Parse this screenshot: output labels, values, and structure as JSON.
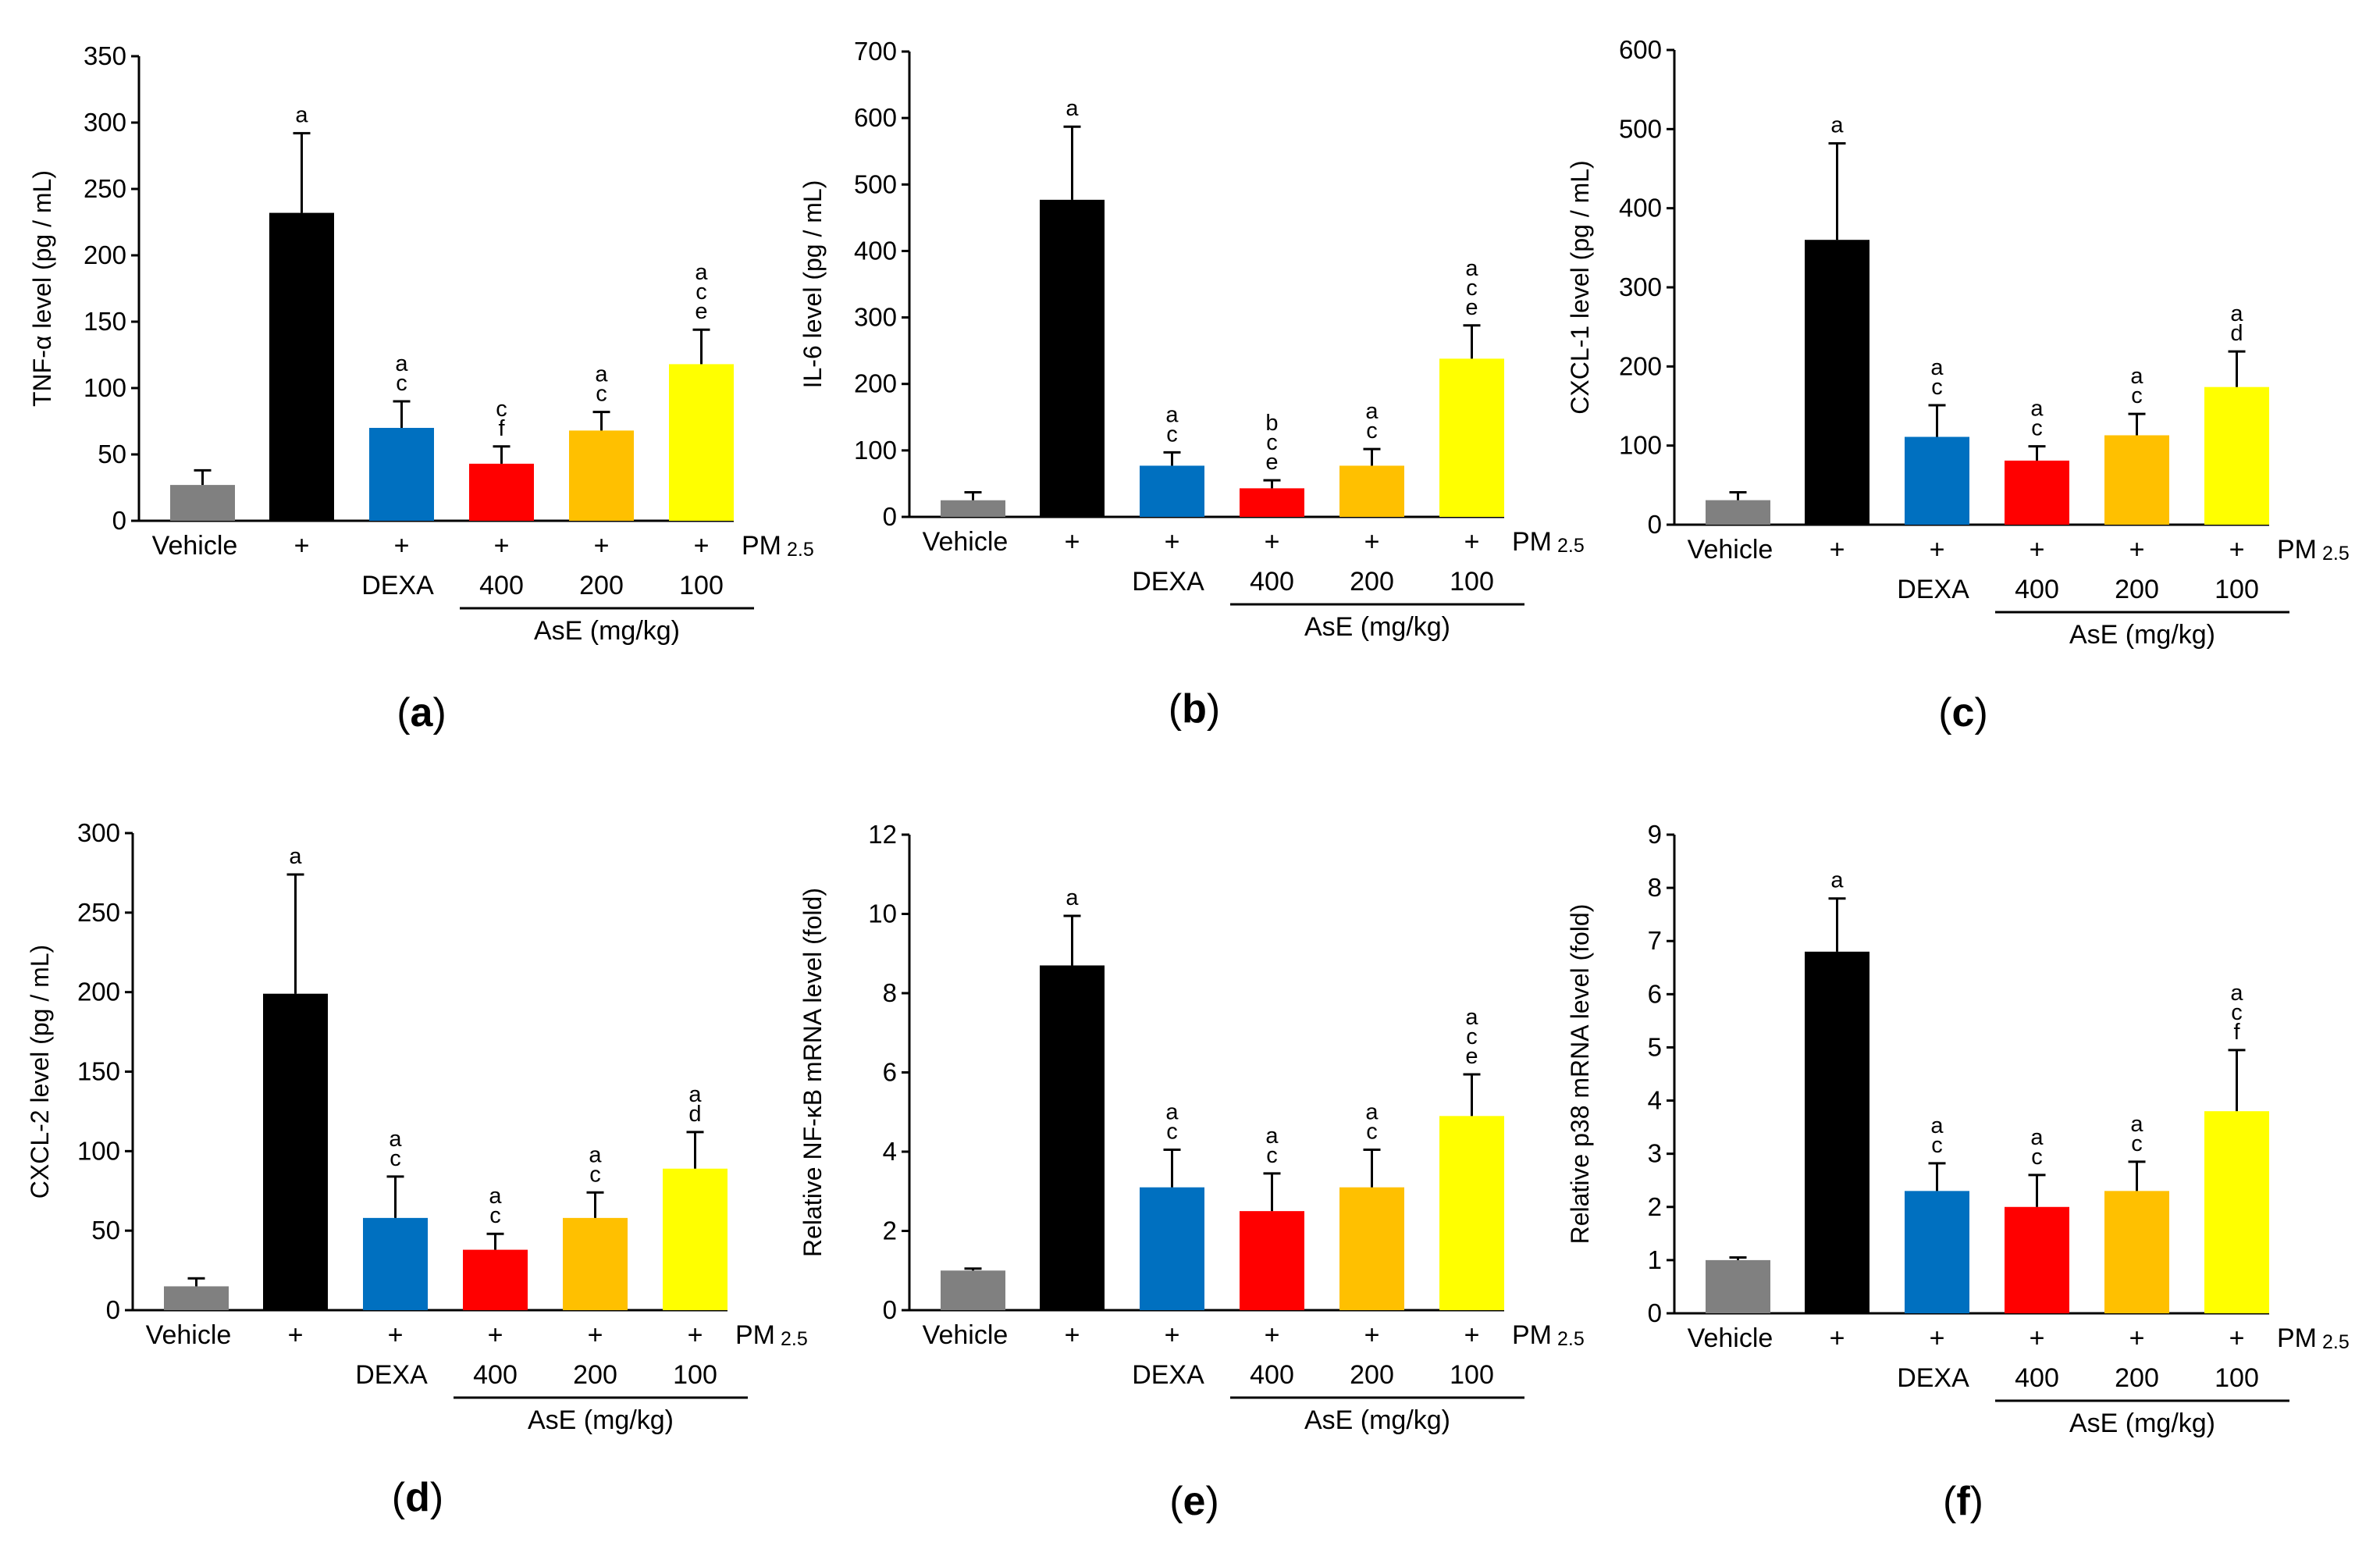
{
  "chart_data": [
    {
      "type": "bar",
      "panel_label": "a",
      "ylabel": "TNF-α level (pg / mL)",
      "ylim": [
        0,
        350
      ],
      "yticks": [
        "0",
        "50",
        "100",
        "150",
        "200",
        "250",
        "300",
        "350"
      ],
      "categories": [
        "Vehicle",
        "PM2.5",
        "PM2.5 + DEXA",
        "PM2.5 + AsE 400",
        "PM2.5 + AsE 200",
        "PM2.5 + AsE 100"
      ],
      "values": [
        27,
        232,
        70,
        43,
        68,
        118
      ],
      "errors": [
        11,
        60,
        20,
        13,
        14,
        26
      ],
      "colors": [
        "#808080",
        "#000000",
        "#0070c0",
        "#ff0000",
        "#ffc000",
        "#ffff00"
      ],
      "significance": [
        [],
        [
          "a"
        ],
        [
          "a",
          "c"
        ],
        [
          "c",
          "f"
        ],
        [
          "a",
          "c"
        ],
        [
          "a",
          "c",
          "e"
        ]
      ],
      "row1": [
        "Vehicle",
        "+",
        "+",
        "+",
        "+",
        "+"
      ],
      "row2": [
        "",
        "",
        "DEXA",
        "400",
        "200",
        "100"
      ],
      "pm_label": "PM",
      "pm_sub": "2.5",
      "group_label": "AsE (mg/kg)"
    },
    {
      "type": "bar",
      "panel_label": "b",
      "ylabel": "IL-6 level (pg / mL)",
      "ylim": [
        0,
        700
      ],
      "yticks": [
        "0",
        "100",
        "200",
        "300",
        "400",
        "500",
        "600",
        "700"
      ],
      "categories": [
        "Vehicle",
        "PM2.5",
        "PM2.5 + DEXA",
        "PM2.5 + AsE 400",
        "PM2.5 + AsE 200",
        "PM2.5 + AsE 100"
      ],
      "values": [
        25,
        477,
        77,
        43,
        77,
        238
      ],
      "errors": [
        12,
        110,
        20,
        12,
        25,
        50
      ],
      "colors": [
        "#808080",
        "#000000",
        "#0070c0",
        "#ff0000",
        "#ffc000",
        "#ffff00"
      ],
      "significance": [
        [],
        [
          "a"
        ],
        [
          "a",
          "c"
        ],
        [
          "b",
          "c",
          "e"
        ],
        [
          "a",
          "c"
        ],
        [
          "a",
          "c",
          "e"
        ]
      ],
      "row1": [
        "Vehicle",
        "+",
        "+",
        "+",
        "+",
        "+"
      ],
      "row2": [
        "",
        "",
        "DEXA",
        "400",
        "200",
        "100"
      ],
      "pm_label": "PM",
      "pm_sub": "2.5",
      "group_label": "AsE (mg/kg)"
    },
    {
      "type": "bar",
      "panel_label": "c",
      "ylabel": "CXCL-1 level (pg / mL)",
      "ylim": [
        0,
        600
      ],
      "yticks": [
        "0",
        "100",
        "200",
        "300",
        "400",
        "500",
        "600"
      ],
      "categories": [
        "Vehicle",
        "PM2.5",
        "PM2.5 + DEXA",
        "PM2.5 + AsE 400",
        "PM2.5 + AsE 200",
        "PM2.5 + AsE 100"
      ],
      "values": [
        31,
        360,
        111,
        81,
        113,
        174
      ],
      "errors": [
        10,
        122,
        40,
        18,
        27,
        45
      ],
      "colors": [
        "#808080",
        "#000000",
        "#0070c0",
        "#ff0000",
        "#ffc000",
        "#ffff00"
      ],
      "significance": [
        [],
        [
          "a"
        ],
        [
          "a",
          "c"
        ],
        [
          "a",
          "c"
        ],
        [
          "a",
          "c"
        ],
        [
          "a",
          "d"
        ]
      ],
      "row1": [
        "Vehicle",
        "+",
        "+",
        "+",
        "+",
        "+"
      ],
      "row2": [
        "",
        "",
        "DEXA",
        "400",
        "200",
        "100"
      ],
      "pm_label": "PM",
      "pm_sub": "2.5",
      "group_label": "AsE (mg/kg)"
    },
    {
      "type": "bar",
      "panel_label": "d",
      "ylabel": "CXCL-2 level (pg / mL)",
      "ylim": [
        0,
        300
      ],
      "yticks": [
        "0",
        "50",
        "100",
        "150",
        "200",
        "250",
        "300"
      ],
      "categories": [
        "Vehicle",
        "PM2.5",
        "PM2.5 + DEXA",
        "PM2.5 + AsE 400",
        "PM2.5 + AsE 200",
        "PM2.5 + AsE 100"
      ],
      "values": [
        15,
        199,
        58,
        38,
        58,
        89
      ],
      "errors": [
        5,
        75,
        26,
        10,
        16,
        23
      ],
      "colors": [
        "#808080",
        "#000000",
        "#0070c0",
        "#ff0000",
        "#ffc000",
        "#ffff00"
      ],
      "significance": [
        [],
        [
          "a"
        ],
        [
          "a",
          "c"
        ],
        [
          "a",
          "c"
        ],
        [
          "a",
          "c"
        ],
        [
          "a",
          "d"
        ]
      ],
      "row1": [
        "Vehicle",
        "+",
        "+",
        "+",
        "+",
        "+"
      ],
      "row2": [
        "",
        "",
        "DEXA",
        "400",
        "200",
        "100"
      ],
      "pm_label": "PM",
      "pm_sub": "2.5",
      "group_label": "AsE (mg/kg)"
    },
    {
      "type": "bar",
      "panel_label": "e",
      "ylabel": "Relative NF-κB mRNA level (fold)",
      "ylim": [
        0,
        12
      ],
      "yticks": [
        "0",
        "2",
        "4",
        "6",
        "8",
        "10",
        "12"
      ],
      "categories": [
        "Vehicle",
        "PM2.5",
        "PM2.5 + DEXA",
        "PM2.5 + AsE 400",
        "PM2.5 + AsE 200",
        "PM2.5 + AsE 100"
      ],
      "values": [
        1.0,
        8.7,
        3.1,
        2.5,
        3.1,
        4.9
      ],
      "errors": [
        0.05,
        1.25,
        0.95,
        0.95,
        0.95,
        1.05
      ],
      "colors": [
        "#808080",
        "#000000",
        "#0070c0",
        "#ff0000",
        "#ffc000",
        "#ffff00"
      ],
      "significance": [
        [],
        [
          "a"
        ],
        [
          "a",
          "c"
        ],
        [
          "a",
          "c"
        ],
        [
          "a",
          "c"
        ],
        [
          "a",
          "c",
          "e"
        ]
      ],
      "row1": [
        "Vehicle",
        "+",
        "+",
        "+",
        "+",
        "+"
      ],
      "row2": [
        "",
        "",
        "DEXA",
        "400",
        "200",
        "100"
      ],
      "pm_label": "PM",
      "pm_sub": "2.5",
      "group_label": "AsE (mg/kg)"
    },
    {
      "type": "bar",
      "panel_label": "f",
      "ylabel": "Relative p38 mRNA level (fold)",
      "ylim": [
        0,
        9
      ],
      "yticks": [
        "0",
        "1",
        "2",
        "3",
        "4",
        "5",
        "6",
        "7",
        "8",
        "9"
      ],
      "categories": [
        "Vehicle",
        "PM2.5",
        "PM2.5 + DEXA",
        "PM2.5 + AsE 400",
        "PM2.5 + AsE 200",
        "PM2.5 + AsE 100"
      ],
      "values": [
        1.0,
        6.8,
        2.3,
        2.0,
        2.3,
        3.8
      ],
      "errors": [
        0.05,
        1.0,
        0.52,
        0.6,
        0.55,
        1.15
      ],
      "colors": [
        "#808080",
        "#000000",
        "#0070c0",
        "#ff0000",
        "#ffc000",
        "#ffff00"
      ],
      "significance": [
        [],
        [
          "a"
        ],
        [
          "a",
          "c"
        ],
        [
          "a",
          "c"
        ],
        [
          "a",
          "c"
        ],
        [
          "a",
          "c",
          "f"
        ]
      ],
      "row1": [
        "Vehicle",
        "+",
        "+",
        "+",
        "+",
        "+"
      ],
      "row2": [
        "",
        "",
        "DEXA",
        "400",
        "200",
        "100"
      ],
      "pm_label": "PM",
      "pm_sub": "2.5",
      "group_label": "AsE (mg/kg)"
    }
  ]
}
